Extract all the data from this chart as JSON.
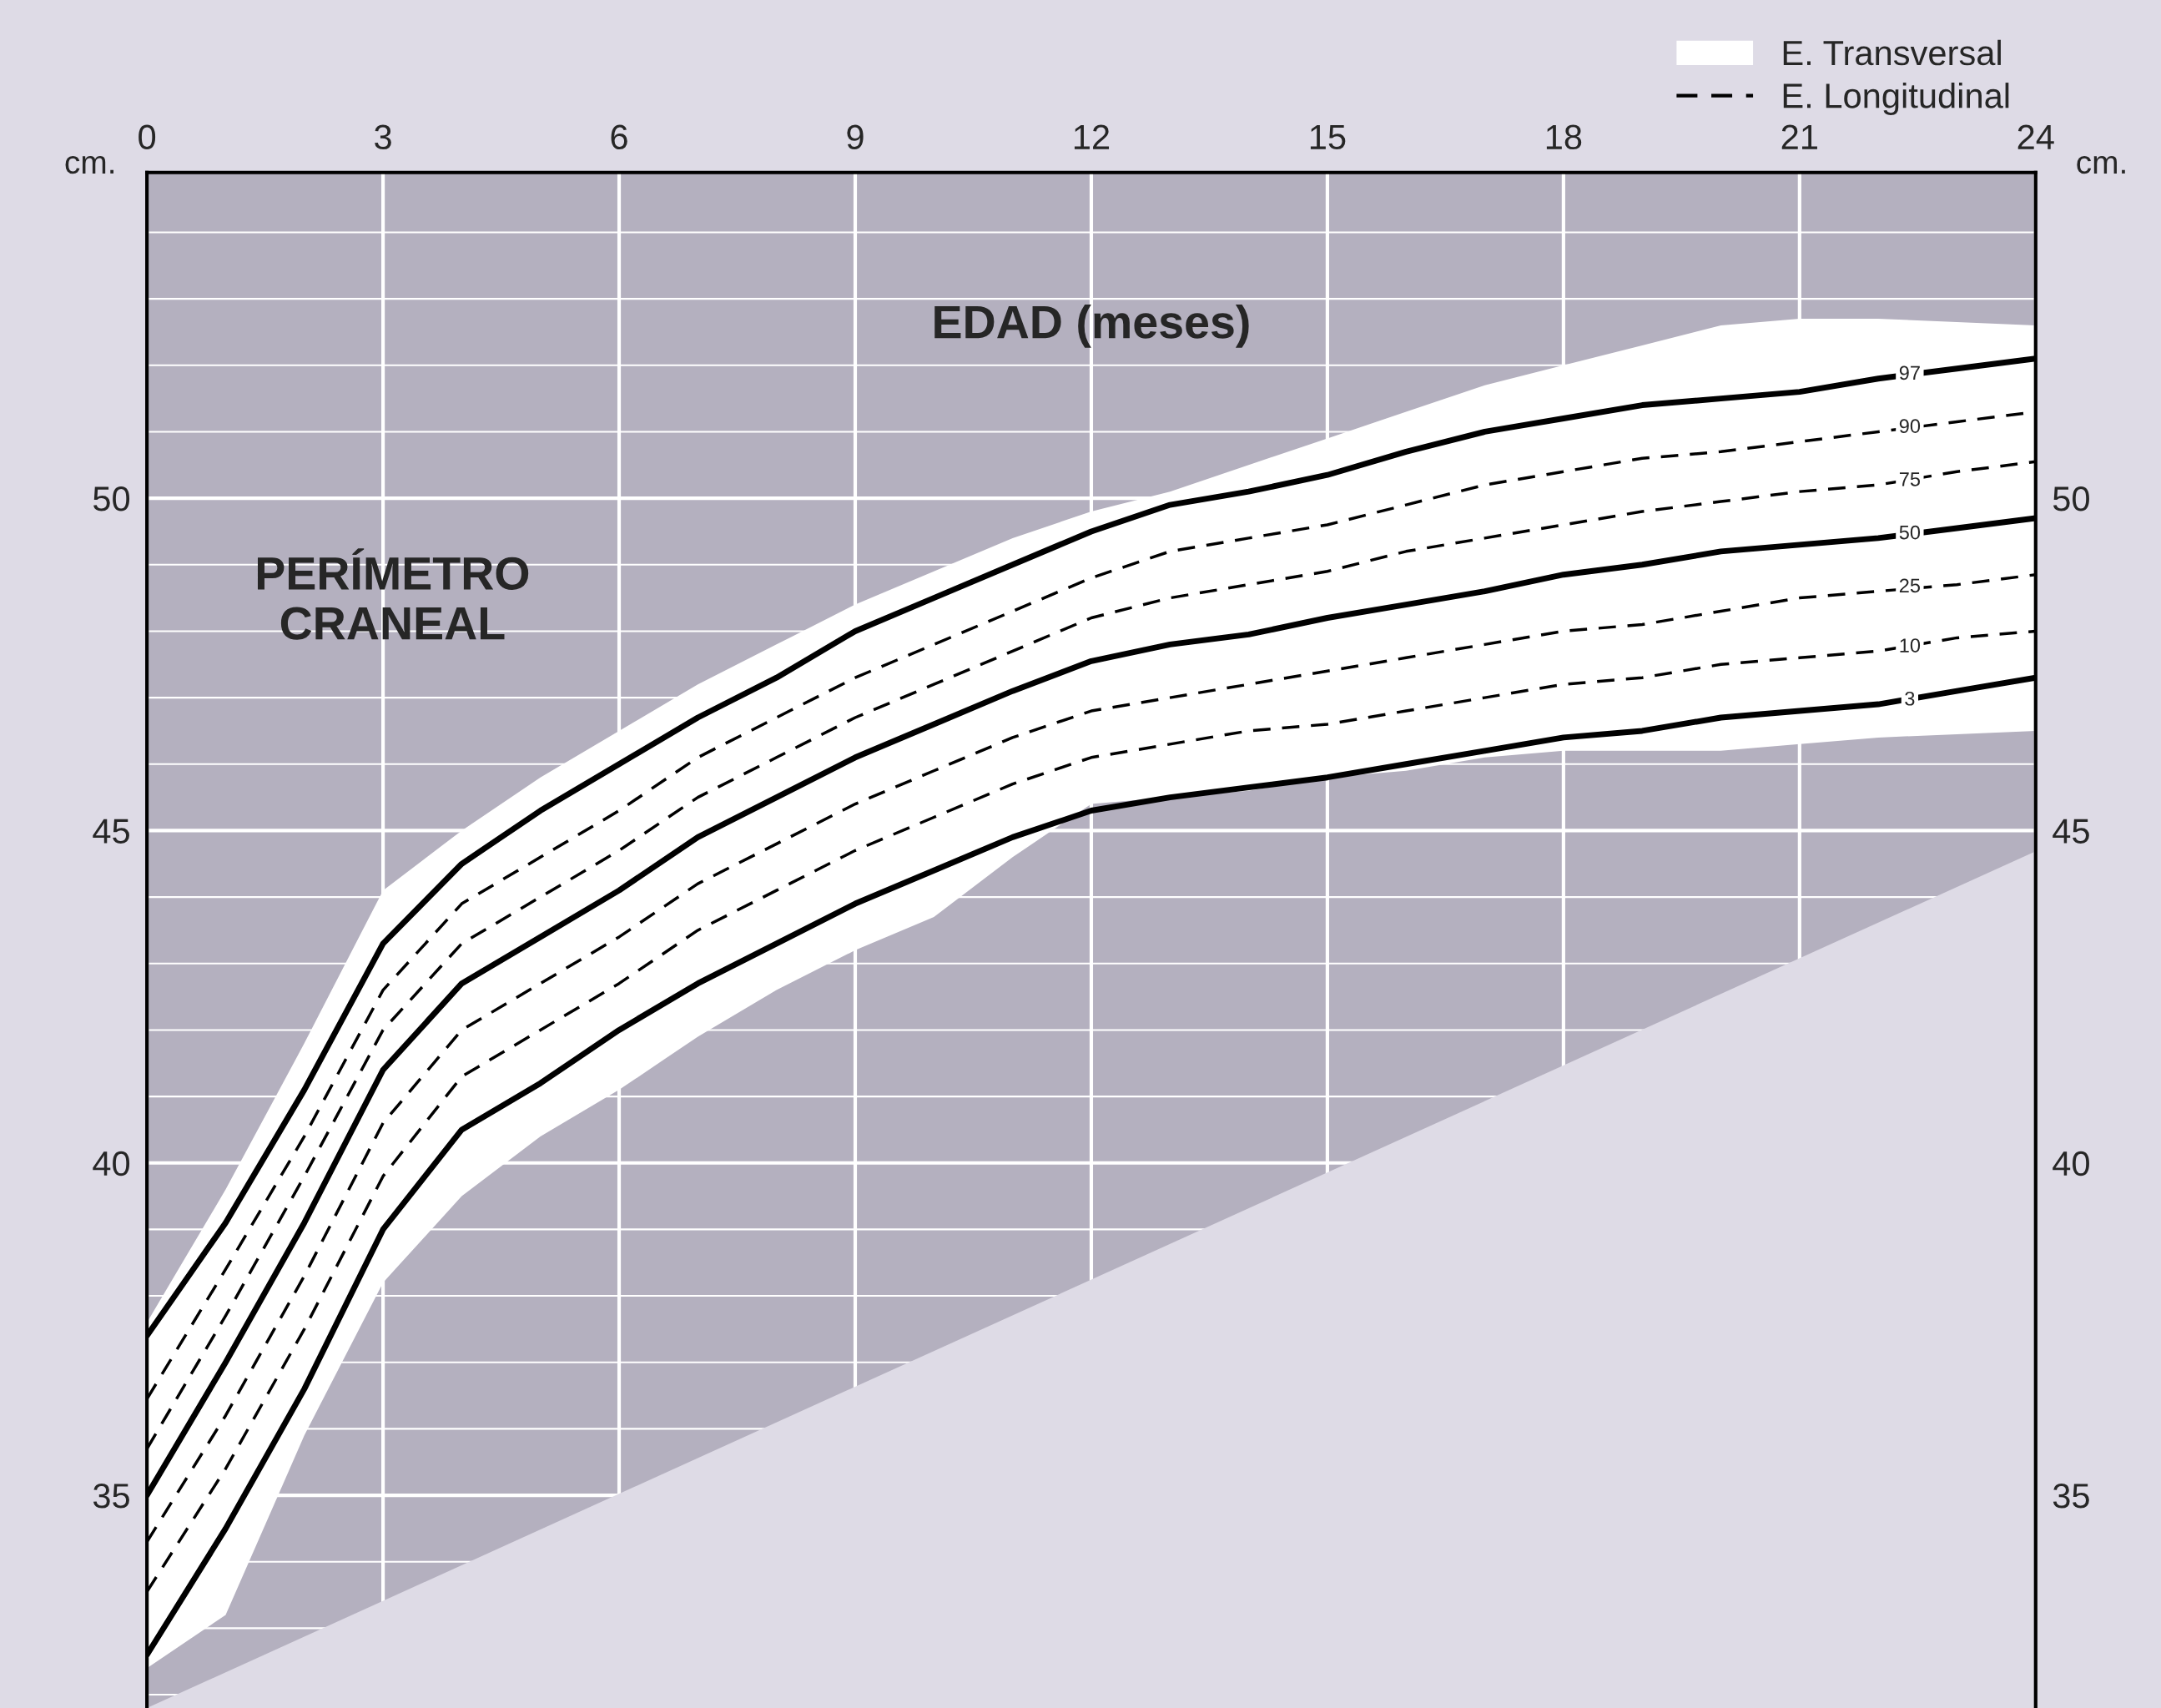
{
  "chart_data": {
    "type": "line",
    "title": "PERÍMETRO\nCRANEAL",
    "xlabel": "EDAD (meses)",
    "ylabel": "cm.",
    "y2label": "cm.",
    "annotations": [
      "E. Transversal",
      "E. Longitudinal"
    ],
    "xlim": [
      0,
      24
    ],
    "xticks": [
      0,
      3,
      6,
      9,
      12,
      15,
      18,
      21,
      24
    ],
    "ylim": [
      31.8,
      54.9
    ],
    "yticks": [
      35,
      40,
      45,
      50
    ],
    "y2lim": [
      31.8,
      54.9
    ],
    "y2ticks": [
      35,
      40,
      45,
      50
    ],
    "grid": true,
    "legend": "top right",
    "x": [
      0,
      1,
      2,
      3,
      4,
      5,
      6,
      7,
      8,
      9,
      10,
      11,
      12,
      13,
      14,
      15,
      16,
      17,
      18,
      19,
      20,
      21,
      22,
      23,
      24
    ],
    "series": [
      {
        "name": "97",
        "color": "#000000",
        "line_style": "solid",
        "values": [
          37.4,
          39.1,
          41.1,
          43.3,
          44.5,
          45.3,
          46.0,
          46.7,
          47.3,
          48.0,
          48.5,
          49.0,
          49.5,
          49.9,
          50.1,
          50.35,
          50.7,
          51.0,
          51.2,
          51.4,
          51.5,
          51.6,
          51.8,
          51.95,
          52.1
        ]
      },
      {
        "name": "90",
        "color": "#000000",
        "line_style": "dashed",
        "values": [
          36.45,
          38.4,
          40.4,
          42.6,
          43.9,
          44.6,
          45.3,
          46.1,
          46.7,
          47.3,
          47.8,
          48.3,
          48.8,
          49.2,
          49.4,
          49.6,
          49.9,
          50.2,
          50.4,
          50.6,
          50.7,
          50.85,
          51.0,
          51.15,
          51.3
        ]
      },
      {
        "name": "75",
        "color": "#000000",
        "line_style": "dashed",
        "values": [
          35.7,
          37.7,
          39.8,
          42.0,
          43.3,
          44.0,
          44.7,
          45.5,
          46.1,
          46.7,
          47.2,
          47.7,
          48.2,
          48.5,
          48.7,
          48.9,
          49.2,
          49.4,
          49.6,
          49.8,
          49.95,
          50.1,
          50.2,
          50.4,
          50.55
        ]
      },
      {
        "name": "50",
        "color": "#000000",
        "line_style": "solid",
        "values": [
          35.0,
          37.0,
          39.1,
          41.4,
          42.7,
          43.4,
          44.1,
          44.9,
          45.5,
          46.1,
          46.6,
          47.1,
          47.55,
          47.8,
          47.95,
          48.2,
          48.4,
          48.6,
          48.85,
          49.0,
          49.2,
          49.3,
          49.4,
          49.55,
          49.7
        ],
        "upper": [
          37.6,
          39.6,
          41.8,
          44.1,
          45.0,
          45.8,
          46.5,
          47.2,
          47.8,
          48.4,
          48.9,
          49.4,
          49.8,
          50.1,
          50.5,
          50.9,
          51.3,
          51.7,
          52.0,
          52.3,
          52.6,
          52.7,
          52.7,
          52.65,
          52.6
        ],
        "lower": [
          32.4,
          33.2,
          35.9,
          38.2,
          39.5,
          40.4,
          41.1,
          41.9,
          42.6,
          43.2,
          43.7,
          44.6,
          45.4,
          45.5,
          45.6,
          45.8,
          45.9,
          46.1,
          46.2,
          46.2,
          46.2,
          46.3,
          46.4,
          46.45,
          46.5
        ]
      },
      {
        "name": "25",
        "color": "#000000",
        "line_style": "dashed",
        "values": [
          34.3,
          36.2,
          38.3,
          40.6,
          42.0,
          42.7,
          43.4,
          44.2,
          44.8,
          45.4,
          45.9,
          46.4,
          46.8,
          47.0,
          47.2,
          47.4,
          47.6,
          47.8,
          48.0,
          48.1,
          48.3,
          48.5,
          48.6,
          48.7,
          48.85
        ]
      },
      {
        "name": "10",
        "color": "#000000",
        "line_style": "dashed",
        "values": [
          33.55,
          35.4,
          37.5,
          39.8,
          41.3,
          42.0,
          42.7,
          43.5,
          44.1,
          44.7,
          45.2,
          45.7,
          46.1,
          46.3,
          46.5,
          46.6,
          46.8,
          47.0,
          47.2,
          47.3,
          47.5,
          47.6,
          47.7,
          47.9,
          48.0
        ]
      },
      {
        "name": "3",
        "color": "#000000",
        "line_style": "solid",
        "values": [
          32.6,
          34.5,
          36.6,
          39.0,
          40.5,
          41.2,
          42.0,
          42.7,
          43.3,
          43.9,
          44.4,
          44.9,
          45.3,
          45.5,
          45.65,
          45.8,
          46.0,
          46.2,
          46.4,
          46.5,
          46.7,
          46.8,
          46.9,
          47.1,
          47.3
        ]
      }
    ]
  }
}
